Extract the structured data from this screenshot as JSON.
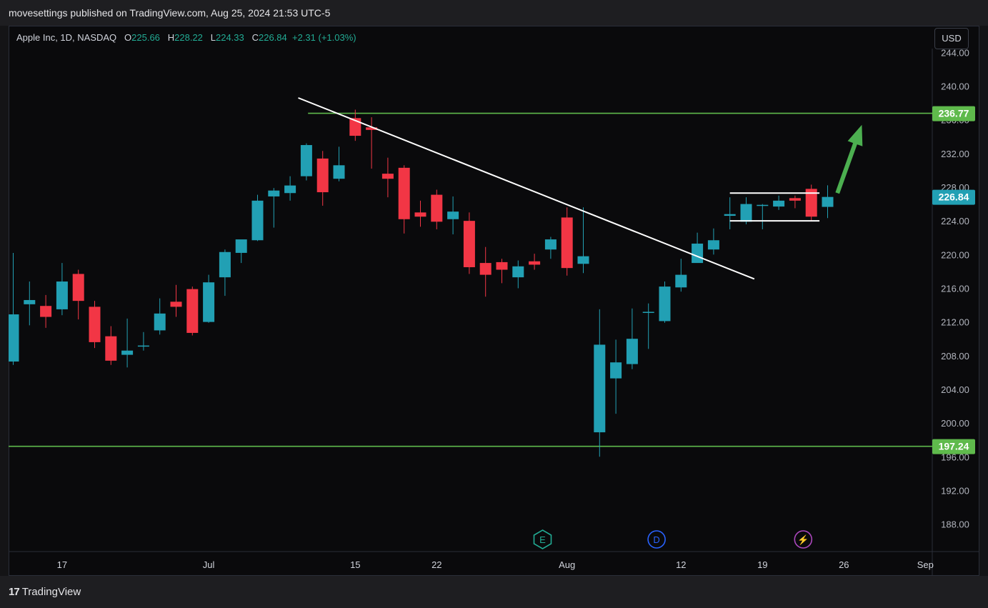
{
  "header": {
    "title": "movesettings published on TradingView.com, Aug 25, 2024 21:53 UTC-5"
  },
  "legend": {
    "symbol": "Apple Inc, 1D, NASDAQ",
    "o_label": "O",
    "o_value": "225.66",
    "h_label": "H",
    "h_value": "228.22",
    "l_label": "L",
    "l_value": "224.33",
    "c_label": "C",
    "c_value": "226.84",
    "change": "+2.31 (+1.03%)"
  },
  "currency_button": "USD",
  "footer": {
    "brand": "TradingView"
  },
  "icons": [
    "earnings-icon",
    "dividend-icon",
    "split-icon"
  ],
  "colors": {
    "up": "#22a0b4",
    "down": "#f23645",
    "level": "#5fba4c",
    "arrow": "#4caf50",
    "trendline": "#ffffff",
    "background": "#0a0a0c"
  },
  "chart_data": {
    "type": "candlestick",
    "yaxis": {
      "min": 185,
      "max": 245,
      "ticks": [
        "244.00",
        "240.00",
        "236.00",
        "232.00",
        "228.00",
        "224.00",
        "220.00",
        "216.00",
        "212.00",
        "208.00",
        "204.00",
        "200.00",
        "196.00",
        "192.00",
        "188.00"
      ],
      "tick_values": [
        244,
        240,
        236,
        232,
        228,
        224,
        220,
        216,
        212,
        208,
        204,
        200,
        196,
        192,
        188
      ]
    },
    "xaxis": {
      "labels": [
        {
          "text": "17",
          "slot": 3
        },
        {
          "text": "Jul",
          "slot": 12
        },
        {
          "text": "15",
          "slot": 21
        },
        {
          "text": "22",
          "slot": 26
        },
        {
          "text": "Aug",
          "slot": 34
        },
        {
          "text": "12",
          "slot": 41
        },
        {
          "text": "19",
          "slot": 46
        },
        {
          "text": "26",
          "slot": 51
        },
        {
          "text": "Sep",
          "slot": 56
        }
      ]
    },
    "candles": [
      {
        "o": 207.3,
        "h": 220.2,
        "l": 206.9,
        "c": 212.9
      },
      {
        "o": 214.1,
        "h": 216.8,
        "l": 211.6,
        "c": 214.6
      },
      {
        "o": 213.9,
        "h": 215.2,
        "l": 211.3,
        "c": 212.6
      },
      {
        "o": 213.5,
        "h": 219.0,
        "l": 212.8,
        "c": 216.8
      },
      {
        "o": 217.7,
        "h": 218.2,
        "l": 212.3,
        "c": 214.5
      },
      {
        "o": 213.8,
        "h": 214.5,
        "l": 208.9,
        "c": 209.6
      },
      {
        "o": 210.3,
        "h": 211.5,
        "l": 206.9,
        "c": 207.4
      },
      {
        "o": 208.1,
        "h": 212.4,
        "l": 206.6,
        "c": 208.6
      },
      {
        "o": 209.1,
        "h": 210.8,
        "l": 208.6,
        "c": 209.2
      },
      {
        "o": 211.0,
        "h": 214.8,
        "l": 210.5,
        "c": 213.0
      },
      {
        "o": 214.4,
        "h": 216.4,
        "l": 212.6,
        "c": 213.8
      },
      {
        "o": 215.9,
        "h": 216.2,
        "l": 210.4,
        "c": 210.7
      },
      {
        "o": 212.0,
        "h": 217.6,
        "l": 211.9,
        "c": 216.7
      },
      {
        "o": 217.3,
        "h": 220.6,
        "l": 215.1,
        "c": 220.3
      },
      {
        "o": 220.2,
        "h": 221.7,
        "l": 219.0,
        "c": 221.8
      },
      {
        "o": 221.7,
        "h": 227.1,
        "l": 221.6,
        "c": 226.4
      },
      {
        "o": 226.9,
        "h": 227.9,
        "l": 223.2,
        "c": 227.6
      },
      {
        "o": 227.3,
        "h": 229.3,
        "l": 226.4,
        "c": 228.2
      },
      {
        "o": 229.3,
        "h": 233.2,
        "l": 228.8,
        "c": 233.0
      },
      {
        "o": 231.4,
        "h": 232.3,
        "l": 225.8,
        "c": 227.4
      },
      {
        "o": 229.0,
        "h": 232.8,
        "l": 228.7,
        "c": 230.6
      },
      {
        "o": 236.2,
        "h": 237.2,
        "l": 233.5,
        "c": 234.1
      },
      {
        "o": 235.1,
        "h": 236.3,
        "l": 230.2,
        "c": 234.8
      },
      {
        "o": 229.6,
        "h": 231.5,
        "l": 226.8,
        "c": 229.0
      },
      {
        "o": 230.3,
        "h": 230.6,
        "l": 222.5,
        "c": 224.2
      },
      {
        "o": 225.0,
        "h": 226.4,
        "l": 223.3,
        "c": 224.5
      },
      {
        "o": 227.1,
        "h": 227.7,
        "l": 223.0,
        "c": 223.9
      },
      {
        "o": 224.2,
        "h": 226.9,
        "l": 222.4,
        "c": 225.1
      },
      {
        "o": 224.0,
        "h": 225.0,
        "l": 217.7,
        "c": 218.5
      },
      {
        "o": 219.0,
        "h": 220.9,
        "l": 215.0,
        "c": 217.6
      },
      {
        "o": 219.1,
        "h": 219.5,
        "l": 216.6,
        "c": 218.2
      },
      {
        "o": 217.3,
        "h": 219.3,
        "l": 216.0,
        "c": 218.6
      },
      {
        "o": 219.2,
        "h": 220.1,
        "l": 218.2,
        "c": 218.8
      },
      {
        "o": 220.6,
        "h": 222.1,
        "l": 219.5,
        "c": 221.8
      },
      {
        "o": 224.4,
        "h": 225.6,
        "l": 217.5,
        "c": 218.4
      },
      {
        "o": 218.9,
        "h": 225.6,
        "l": 217.8,
        "c": 219.8
      },
      {
        "o": 198.9,
        "h": 213.5,
        "l": 196.0,
        "c": 209.3
      },
      {
        "o": 205.3,
        "h": 209.9,
        "l": 201.1,
        "c": 207.2
      },
      {
        "o": 207.0,
        "h": 213.6,
        "l": 206.4,
        "c": 210.0
      },
      {
        "o": 213.1,
        "h": 214.2,
        "l": 208.8,
        "c": 213.2
      },
      {
        "o": 212.1,
        "h": 216.8,
        "l": 211.9,
        "c": 216.2
      },
      {
        "o": 216.1,
        "h": 219.5,
        "l": 215.6,
        "c": 217.6
      },
      {
        "o": 219.0,
        "h": 222.6,
        "l": 219.2,
        "c": 221.3
      },
      {
        "o": 220.6,
        "h": 223.1,
        "l": 220.0,
        "c": 221.7
      },
      {
        "o": 224.6,
        "h": 226.8,
        "l": 223.0,
        "c": 224.8
      },
      {
        "o": 223.9,
        "h": 226.8,
        "l": 223.6,
        "c": 226.0
      },
      {
        "o": 225.8,
        "h": 226.0,
        "l": 223.0,
        "c": 225.9
      },
      {
        "o": 225.7,
        "h": 227.0,
        "l": 225.3,
        "c": 226.4
      },
      {
        "o": 226.7,
        "h": 227.0,
        "l": 225.5,
        "c": 226.4
      },
      {
        "o": 227.8,
        "h": 228.3,
        "l": 224.0,
        "c": 224.5
      },
      {
        "o": 225.66,
        "h": 228.22,
        "l": 224.33,
        "c": 226.84
      }
    ],
    "levels": [
      {
        "value": 236.77,
        "label": "236.77",
        "color": "#5fba4c"
      },
      {
        "value": 197.24,
        "label": "197.24",
        "color": "#5fba4c"
      }
    ],
    "last_price": {
      "value": 226.84,
      "label": "226.84",
      "color": "#22a0b4"
    },
    "trendline": {
      "from": {
        "slot": 17.5,
        "price": 238.6
      },
      "to": {
        "slot": 45.5,
        "price": 217.1
      }
    },
    "range_box": {
      "from_slot": 44,
      "to_slot": 49.5,
      "top": 227.3,
      "bottom": 224.0
    },
    "arrow": {
      "from": {
        "slot": 50.6,
        "price": 227.3
      },
      "to": {
        "slot": 52.1,
        "price": 235.4
      }
    },
    "event_markers": [
      {
        "slot": 32.5,
        "glyph": "E",
        "name": "earnings-icon"
      },
      {
        "slot": 39.5,
        "glyph": "D",
        "name": "dividend-icon"
      },
      {
        "slot": 48.5,
        "glyph": "⚡",
        "name": "split-icon"
      }
    ]
  }
}
